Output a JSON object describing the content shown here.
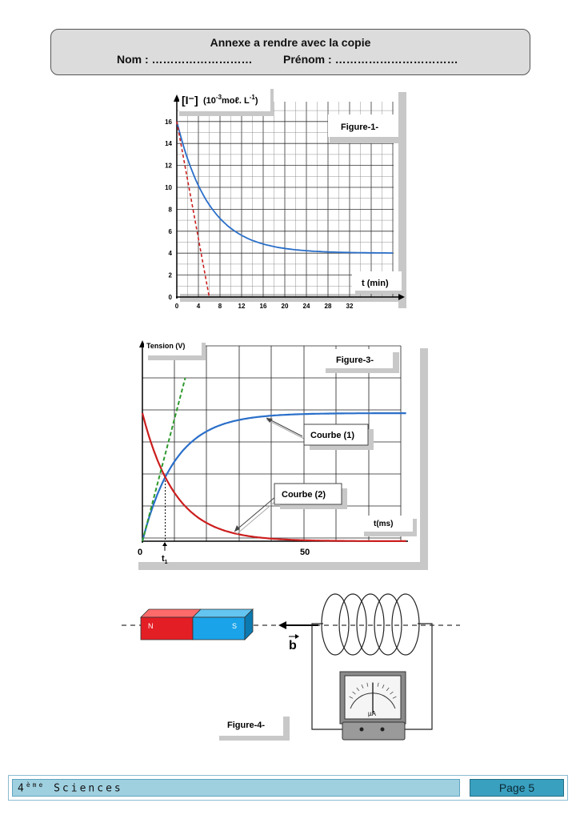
{
  "header": {
    "title": "Annexe a rendre avec la copie",
    "nom": "Nom : ………………………",
    "prenom": "Prénom : ……………………………"
  },
  "figure1": {
    "label": "Figure-1-",
    "ylabel_main": "[I⁻]",
    "ylabel_unit_a": "(10",
    "ylabel_unit_exp": "-3",
    "ylabel_unit_b": "moℓ. L",
    "ylabel_unit_exp2": "-1",
    "ylabel_unit_c": ")",
    "xlabel": "t (min)",
    "y_ticks": [
      "16",
      "14",
      "12",
      "10",
      "8",
      "6",
      "4",
      "2",
      "0"
    ],
    "x_ticks": [
      "0",
      "4",
      "8",
      "12",
      "16",
      "20",
      "24",
      "28",
      "32"
    ],
    "colors": {
      "curve": "#2a6fc9",
      "tangent": "#cc1e1e"
    }
  },
  "figure3": {
    "label": "Figure-3-",
    "ylabel": "Tension (V)",
    "xlabel": "t(ms)",
    "x_ticks": [
      "0",
      "50"
    ],
    "t1_label": "t",
    "t1_sub": "1",
    "courbe1": "Courbe (1)",
    "courbe2": "Courbe (2)",
    "colors": {
      "curve1": "#2a6fc9",
      "curve2": "#cc1e1e",
      "tangent": "#2e9a2e"
    }
  },
  "figure4": {
    "label": "Figure-4-",
    "magnet_n": "N",
    "magnet_s": "S",
    "vector_b": "b",
    "meter_unit": "µA",
    "colors": {
      "north": "#e41e25",
      "south": "#1aa3e8"
    }
  },
  "footer": {
    "level": "ème",
    "level_num": "4",
    "level_sub": " Sciences",
    "page": "Page 5"
  }
}
